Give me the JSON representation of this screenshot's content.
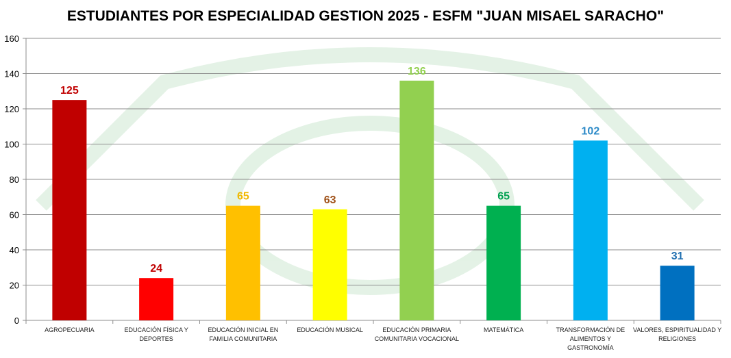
{
  "chart_data": {
    "type": "bar",
    "title": "ESTUDIANTES POR ESPECIALIDAD GESTION 2025 - ESFM \"JUAN MISAEL SARACHO\"",
    "xlabel": "",
    "ylabel": "",
    "ylim": [
      0,
      160
    ],
    "yticks": [
      0,
      20,
      40,
      60,
      80,
      100,
      120,
      140,
      160
    ],
    "grid": true,
    "legend": "none",
    "categories": [
      [
        "AGROPECUARIA"
      ],
      [
        "EDUCACIÓN FÍSICA Y",
        "DEPORTES"
      ],
      [
        "EDUCACIÓN INICIAL EN",
        "FAMILIA COMUNITARIA"
      ],
      [
        "EDUCACIÓN MUSICAL"
      ],
      [
        "EDUCACIÓN PRIMARIA",
        "COMUNITARIA VOCACIONAL"
      ],
      [
        "MATEMÁTICA"
      ],
      [
        "TRANSFORMACIÓN DE",
        "ALIMENTOS Y",
        "GASTRONOMÍA"
      ],
      [
        "VALORES, ESPIRITUALIDAD Y",
        "RELIGIONES"
      ]
    ],
    "values": [
      125,
      24,
      65,
      63,
      136,
      65,
      102,
      31
    ],
    "bar_colors": [
      "#c00000",
      "#ff0000",
      "#ffc000",
      "#ffff00",
      "#92d050",
      "#00b050",
      "#00b0f0",
      "#0070c0"
    ],
    "label_colors": [
      "#c00000",
      "#c00000",
      "#f0b800",
      "#a0521a",
      "#92d050",
      "#00a050",
      "#2e8bc8",
      "#1f6fb0"
    ]
  }
}
